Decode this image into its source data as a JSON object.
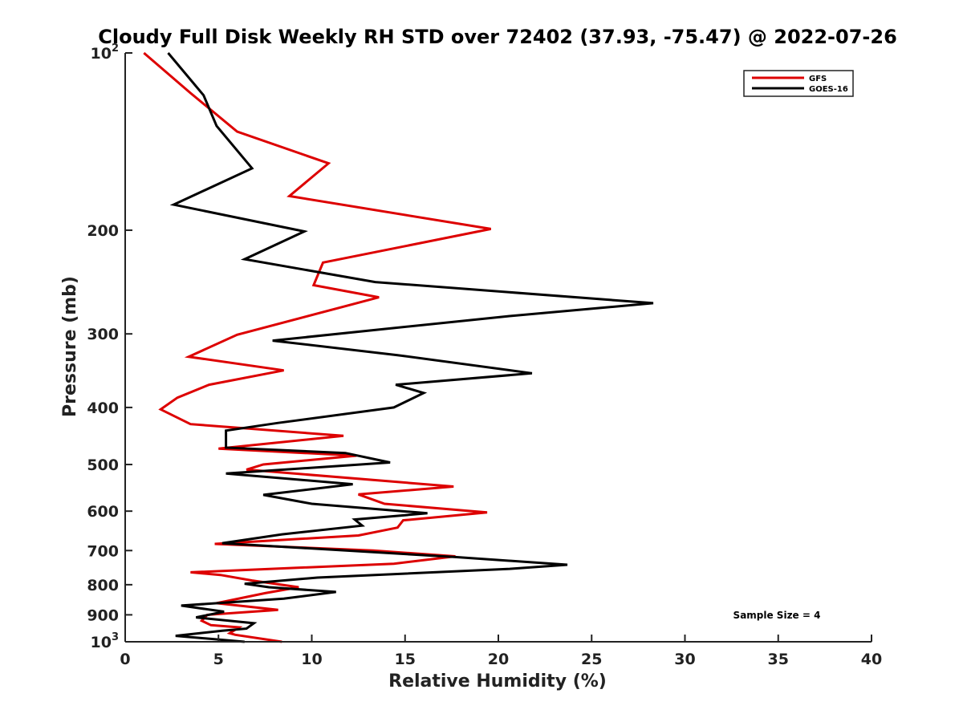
{
  "chart_data": {
    "type": "line",
    "title": "Cloudy Full Disk Weekly RH STD over 72402 (37.93, -75.47) @ 2022-07-26",
    "xlabel": "Relative Humidity (%)",
    "ylabel": "Pressure (mb)",
    "xlim": [
      0,
      40
    ],
    "ylim": [
      100,
      1000
    ],
    "yscale": "log",
    "y_reversed": true,
    "xticks": [
      0,
      5,
      10,
      15,
      20,
      25,
      30,
      35,
      40
    ],
    "xtick_labels": [
      "0",
      "5",
      "10",
      "15",
      "20",
      "25",
      "30",
      "35",
      "40"
    ],
    "yticks": [
      100,
      200,
      300,
      400,
      500,
      600,
      700,
      800,
      900,
      1000
    ],
    "ytick_labels": [
      {
        "base": "10",
        "exp": "2"
      },
      {
        "base": "200",
        "exp": ""
      },
      {
        "base": "300",
        "exp": ""
      },
      {
        "base": "400",
        "exp": ""
      },
      {
        "base": "500",
        "exp": ""
      },
      {
        "base": "600",
        "exp": ""
      },
      {
        "base": "700",
        "exp": ""
      },
      {
        "base": "800",
        "exp": ""
      },
      {
        "base": "900",
        "exp": ""
      },
      {
        "base": "10",
        "exp": "3"
      }
    ],
    "grid": false,
    "legend_position": "top-right",
    "annotation": "Sample Size = 4",
    "series": [
      {
        "name": "GFS",
        "color": "#dd0000",
        "points": [
          [
            1.0,
            100
          ],
          [
            3.5,
            117
          ],
          [
            6.0,
            136
          ],
          [
            10.9,
            154
          ],
          [
            8.8,
            175
          ],
          [
            19.6,
            199
          ],
          [
            10.6,
            227
          ],
          [
            10.1,
            248
          ],
          [
            13.6,
            260
          ],
          [
            6.0,
            301
          ],
          [
            3.4,
            328
          ],
          [
            8.5,
            346
          ],
          [
            4.5,
            366
          ],
          [
            2.8,
            385
          ],
          [
            1.9,
            403
          ],
          [
            3.5,
            427
          ],
          [
            11.7,
            447
          ],
          [
            5.0,
            470
          ],
          [
            12.4,
            483
          ],
          [
            7.4,
            500
          ],
          [
            6.5,
            510
          ],
          [
            17.6,
            545
          ],
          [
            12.5,
            562
          ],
          [
            13.9,
            583
          ],
          [
            19.4,
            603
          ],
          [
            14.9,
            622
          ],
          [
            14.6,
            640
          ],
          [
            12.5,
            660
          ],
          [
            4.8,
            682
          ],
          [
            13.3,
            700
          ],
          [
            17.7,
            716
          ],
          [
            14.4,
            737
          ],
          [
            3.5,
            762
          ],
          [
            5.1,
            770
          ],
          [
            6.8,
            787
          ],
          [
            9.3,
            808
          ],
          [
            7.5,
            827
          ],
          [
            4.9,
            860
          ],
          [
            8.2,
            883
          ],
          [
            4.4,
            900
          ],
          [
            4.1,
            921
          ],
          [
            4.6,
            937
          ],
          [
            6.1,
            945
          ],
          [
            5.6,
            967
          ],
          [
            5.9,
            973
          ],
          [
            8.4,
            1000
          ]
        ]
      },
      {
        "name": "GOES-16",
        "color": "#000000",
        "points": [
          [
            2.3,
            100
          ],
          [
            4.2,
            118
          ],
          [
            4.9,
            133
          ],
          [
            6.8,
            157
          ],
          [
            2.6,
            181
          ],
          [
            9.6,
            201
          ],
          [
            6.4,
            224
          ],
          [
            13.4,
            245
          ],
          [
            28.3,
            266
          ],
          [
            20.5,
            280
          ],
          [
            7.9,
            308
          ],
          [
            14.6,
            326
          ],
          [
            21.8,
            350
          ],
          [
            14.5,
            366
          ],
          [
            16.0,
            378
          ],
          [
            14.4,
            400
          ],
          [
            8.2,
            425
          ],
          [
            5.4,
            438
          ],
          [
            5.4,
            468
          ],
          [
            11.8,
            478
          ],
          [
            14.2,
            496
          ],
          [
            5.4,
            518
          ],
          [
            12.2,
            540
          ],
          [
            7.4,
            563
          ],
          [
            10.0,
            583
          ],
          [
            16.2,
            605
          ],
          [
            12.3,
            620
          ],
          [
            12.7,
            635
          ],
          [
            8.4,
            657
          ],
          [
            5.2,
            680
          ],
          [
            17.7,
            718
          ],
          [
            23.7,
            740
          ],
          [
            20.6,
            752
          ],
          [
            10.3,
            778
          ],
          [
            6.4,
            797
          ],
          [
            7.7,
            808
          ],
          [
            11.3,
            823
          ],
          [
            8.5,
            845
          ],
          [
            3.0,
            868
          ],
          [
            5.3,
            889
          ],
          [
            3.8,
            909
          ],
          [
            6.9,
            930
          ],
          [
            6.5,
            950
          ],
          [
            5.2,
            958
          ],
          [
            2.7,
            977
          ],
          [
            6.4,
            1000
          ]
        ]
      }
    ]
  }
}
